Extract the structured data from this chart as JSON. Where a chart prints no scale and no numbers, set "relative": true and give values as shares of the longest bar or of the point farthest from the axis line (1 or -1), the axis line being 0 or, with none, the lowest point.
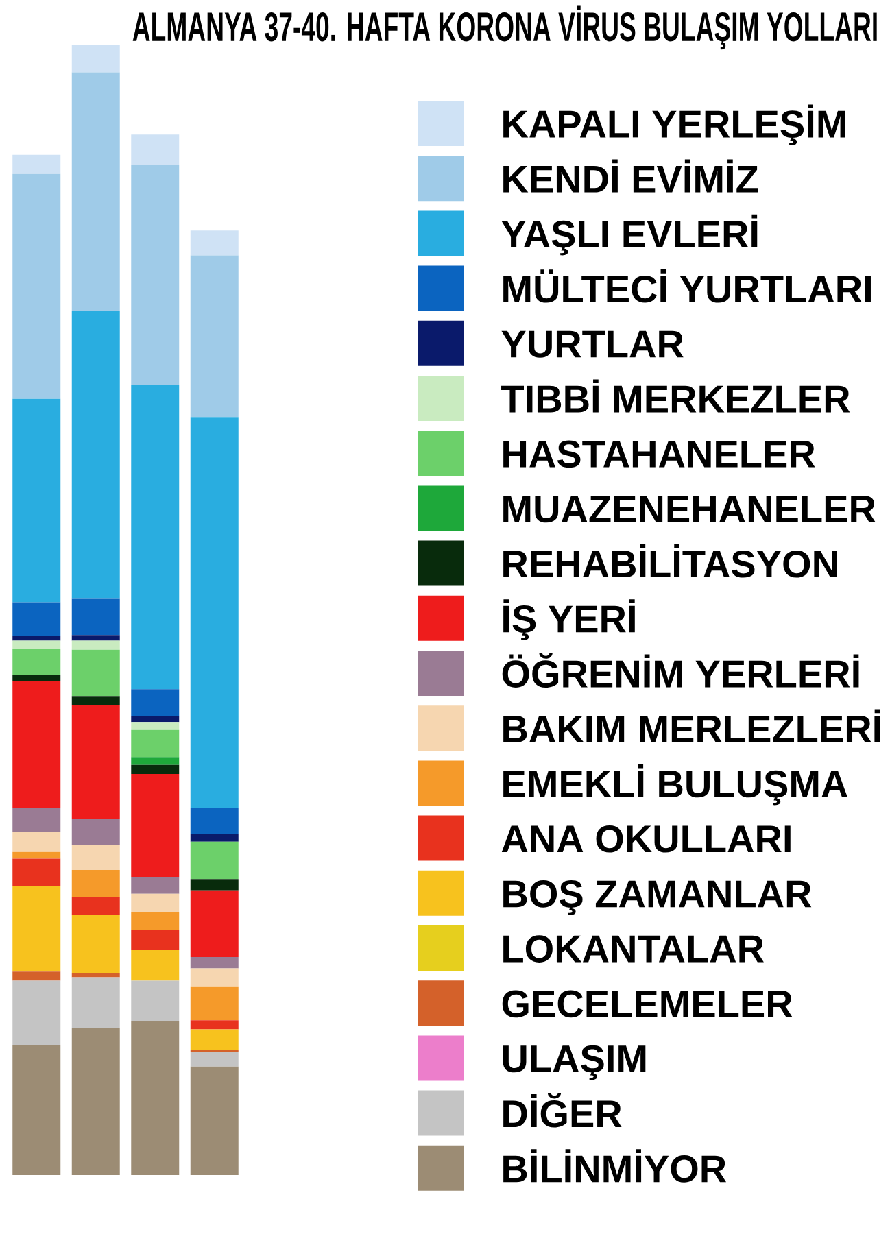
{
  "chart_data": {
    "type": "bar",
    "title": "ALMANYA 37-40. HAFTA KORONA VİRUS BULAŞIM YOLLARI",
    "categories": [
      null,
      null,
      null,
      null
    ],
    "stacked": true,
    "relative": true,
    "legend": "right",
    "series": [
      {
        "name": "BİLİNMİYOR",
        "color": "#9c8c74",
        "values": [
          0.115,
          0.13,
          0.136,
          0.096
        ]
      },
      {
        "name": "DİĞER",
        "color": "#c4c4c4",
        "values": [
          0.057,
          0.045,
          0.036,
          0.013
        ]
      },
      {
        "name": "ULAŞIM",
        "color": "#ec7ecb",
        "values": [
          0,
          0,
          0,
          0
        ]
      },
      {
        "name": "GECELEMELER",
        "color": "#d4612a",
        "values": [
          0.008,
          0.004,
          0,
          0.002
        ]
      },
      {
        "name": "LOKANTALAR",
        "color": "#e6cf1e",
        "values": [
          0,
          0,
          0,
          0
        ]
      },
      {
        "name": "BOŞ ZAMANLAR",
        "color": "#f7c21e",
        "values": [
          0.076,
          0.051,
          0.027,
          0.018
        ]
      },
      {
        "name": "ANA OKULLARI",
        "color": "#e8321e",
        "values": [
          0.024,
          0.016,
          0.018,
          0.008
        ]
      },
      {
        "name": "EMEKLİ BULUŞMA",
        "color": "#f59a2a",
        "values": [
          0.006,
          0.024,
          0.016,
          0.03
        ]
      },
      {
        "name": "BAKIM MERLEZLERİ",
        "color": "#f6d6b0",
        "values": [
          0.018,
          0.022,
          0.016,
          0.016
        ]
      },
      {
        "name": "ÖĞRENİM YERLERİ",
        "color": "#9a7b94",
        "values": [
          0.021,
          0.023,
          0.015,
          0.01
        ]
      },
      {
        "name": "İŞ YERİ",
        "color": "#ee1c1c",
        "values": [
          0.112,
          0.101,
          0.091,
          0.059
        ]
      },
      {
        "name": "REHABİLİTASYON",
        "color": "#082b0c",
        "values": [
          0.006,
          0.008,
          0.008,
          0.01
        ]
      },
      {
        "name": "MUAZENEHANELER",
        "color": "#1ea83a",
        "values": [
          0,
          0,
          0.007,
          0
        ]
      },
      {
        "name": "HASTAHANELER",
        "color": "#6cd06a",
        "values": [
          0.023,
          0.041,
          0.024,
          0.033
        ]
      },
      {
        "name": "TIBBİ MERKEZLER",
        "color": "#c9ebc0",
        "values": [
          0.007,
          0.008,
          0.007,
          0
        ]
      },
      {
        "name": "YURTLAR",
        "color": "#0a1a6b",
        "values": [
          0.004,
          0.005,
          0.005,
          0.007
        ]
      },
      {
        "name": "MÜLTECİ YURTLARI",
        "color": "#0b64c0",
        "values": [
          0.03,
          0.032,
          0.024,
          0.023
        ]
      },
      {
        "name": "YAŞLI EVLERİ",
        "color": "#29ade0",
        "values": [
          0.18,
          0.255,
          0.269,
          0.346
        ]
      },
      {
        "name": "KENDİ EVİMİZ",
        "color": "#9fcbe8",
        "values": [
          0.199,
          0.211,
          0.195,
          0.143
        ]
      },
      {
        "name": "KAPALI YERLEŞİM",
        "color": "#cfe2f5",
        "values": [
          0.017,
          0.024,
          0.027,
          0.022
        ]
      }
    ]
  }
}
